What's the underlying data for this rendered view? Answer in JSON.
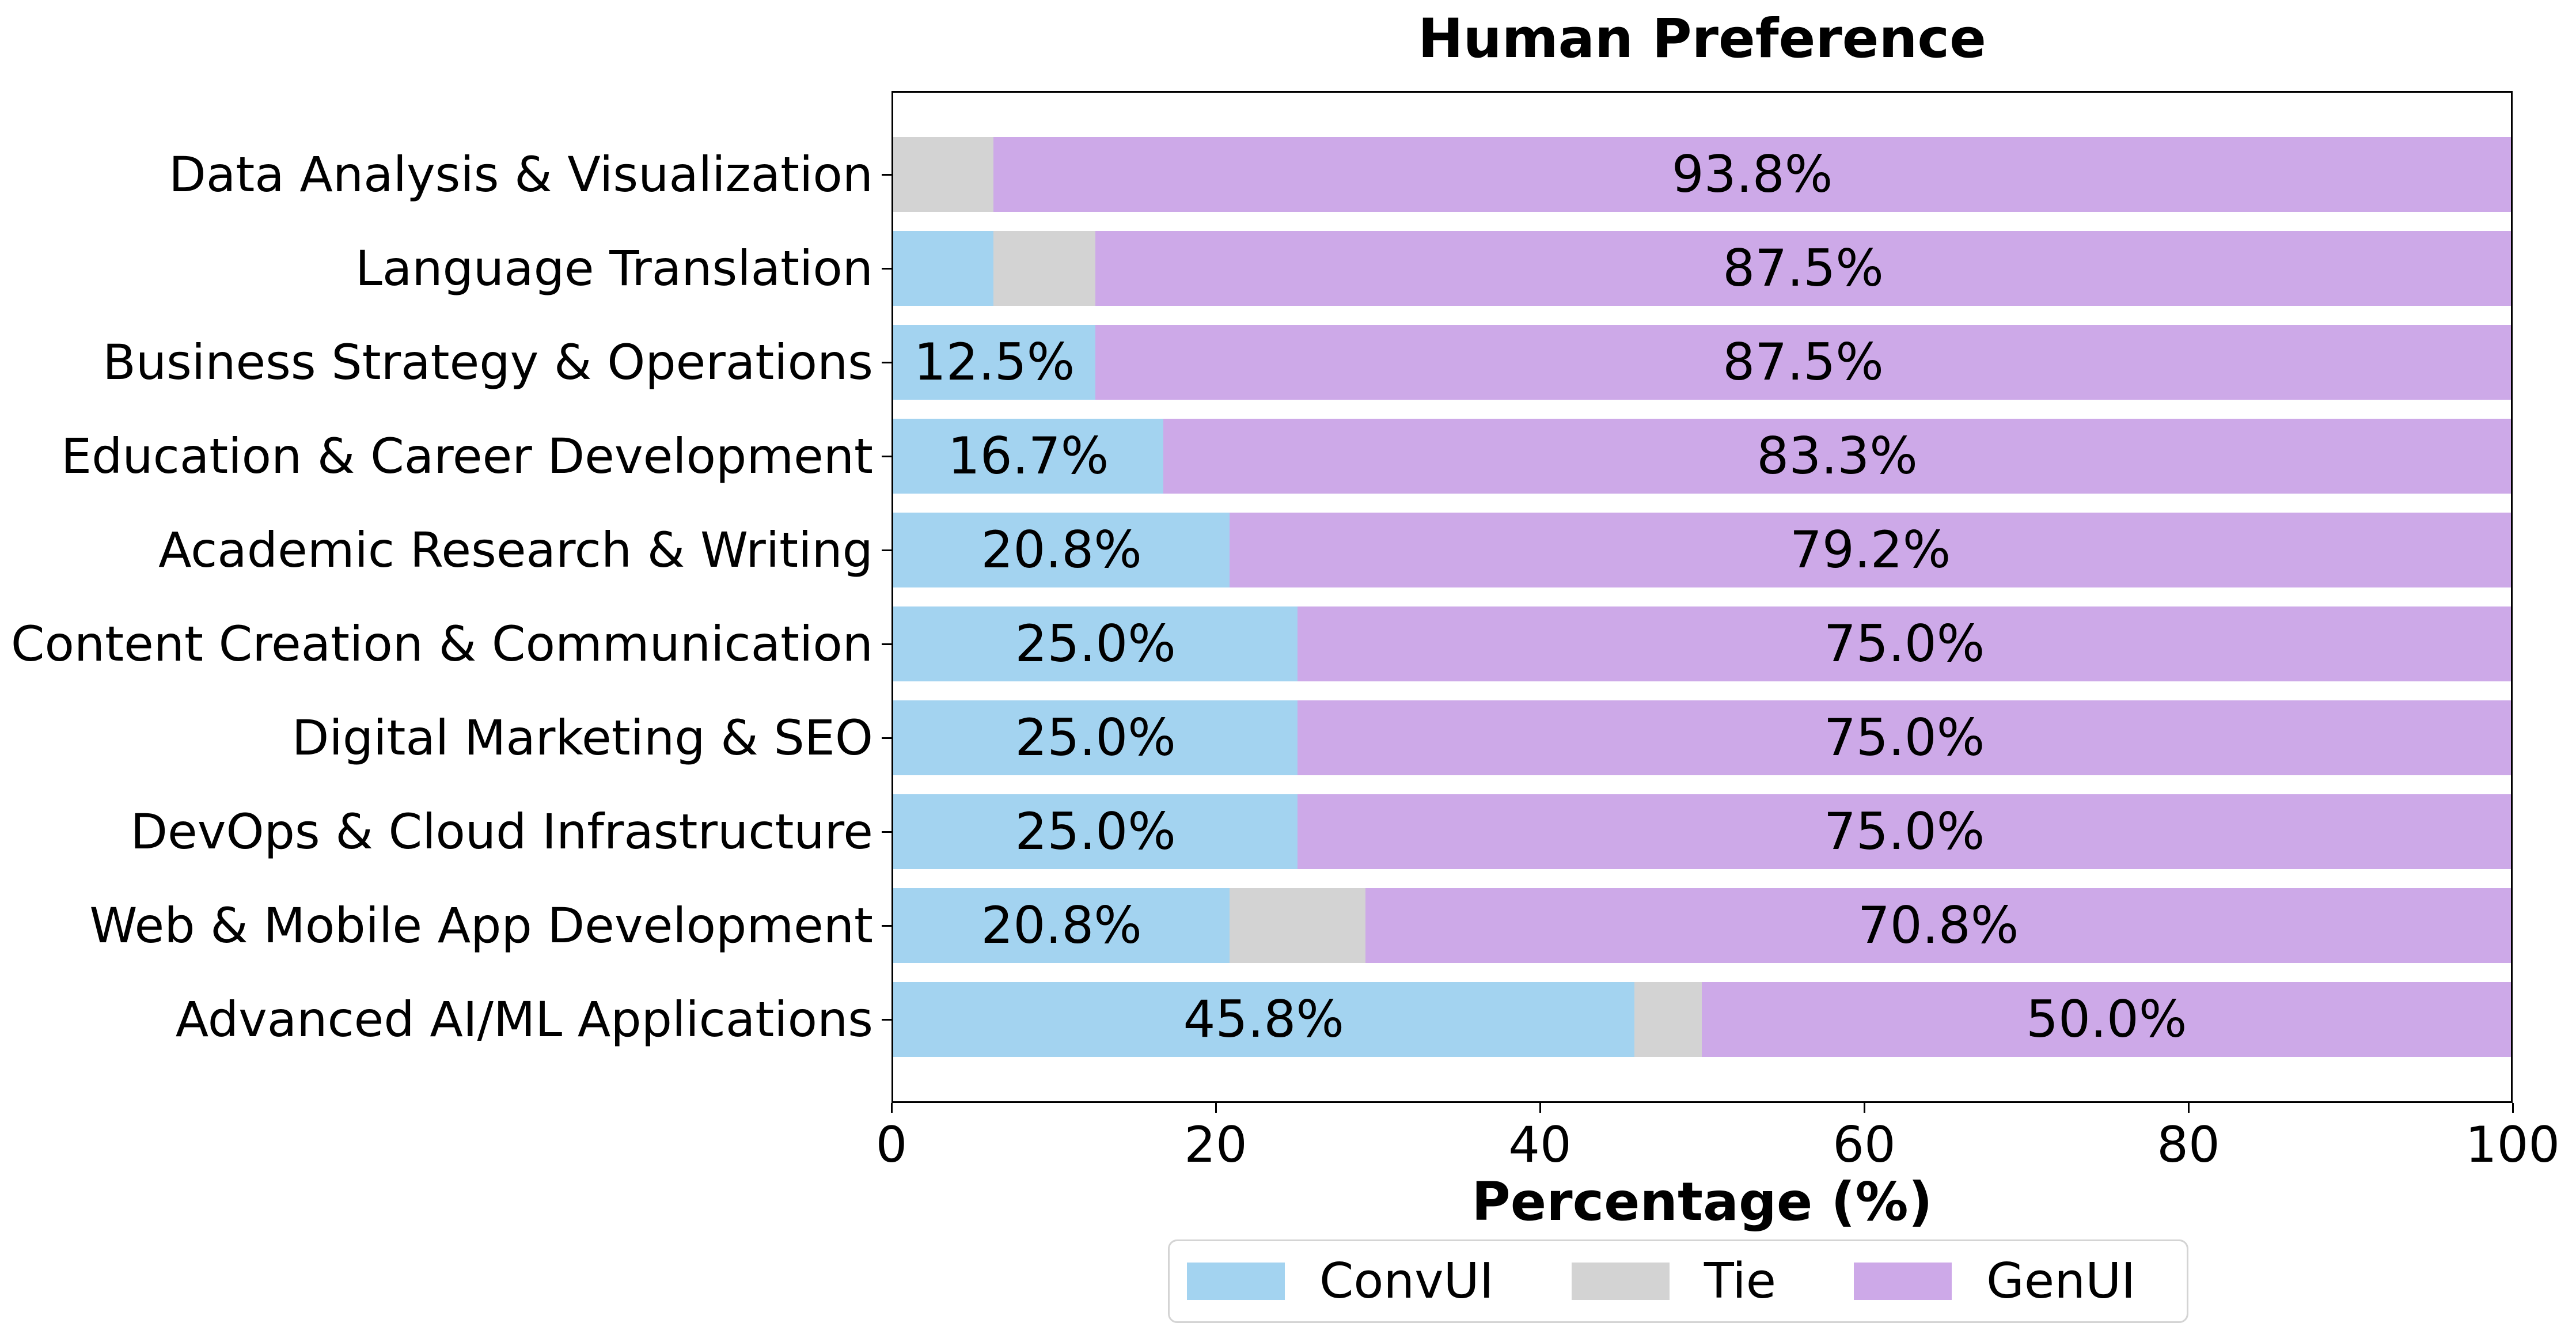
{
  "chart_data": {
    "type": "bar",
    "orientation": "horizontal",
    "stacked": true,
    "title": "Human Preference",
    "xlabel": "Percentage (%)",
    "xlim": [
      0,
      100
    ],
    "xticks": [
      0,
      20,
      40,
      60,
      80,
      100
    ],
    "grid": false,
    "legend_position": "bottom",
    "label_threshold": 10,
    "label_format": "percent_one_decimal",
    "categories": [
      "Data Analysis & Visualization",
      "Language Translation",
      "Business Strategy & Operations",
      "Education & Career Development",
      "Academic Research & Writing",
      "Content Creation & Communication",
      "Digital Marketing & SEO",
      "DevOps & Cloud Infrastructure",
      "Web & Mobile App Development",
      "Advanced AI/ML Applications"
    ],
    "series": [
      {
        "name": "ConvUI",
        "color": "#a3d3f0",
        "values": [
          0.0,
          6.2,
          12.5,
          16.7,
          20.8,
          25.0,
          25.0,
          25.0,
          20.8,
          45.8
        ]
      },
      {
        "name": "Tie",
        "color": "#d3d3d3",
        "values": [
          6.2,
          6.3,
          0.0,
          0.0,
          0.0,
          0.0,
          0.0,
          0.0,
          8.4,
          4.2
        ]
      },
      {
        "name": "GenUI",
        "color": "#cda9e8",
        "values": [
          93.8,
          87.5,
          87.5,
          83.3,
          79.2,
          75.0,
          75.0,
          75.0,
          70.8,
          50.0
        ]
      }
    ],
    "shown_segment_labels": [
      "93.8%",
      "87.5%",
      "12.5%",
      "87.5%",
      "16.7%",
      "83.3%",
      "20.8%",
      "79.2%",
      "25.0%",
      "75.0%",
      "25.0%",
      "75.0%",
      "25.0%",
      "75.0%",
      "20.8%",
      "70.8%",
      "45.8%",
      "50.0%"
    ]
  }
}
